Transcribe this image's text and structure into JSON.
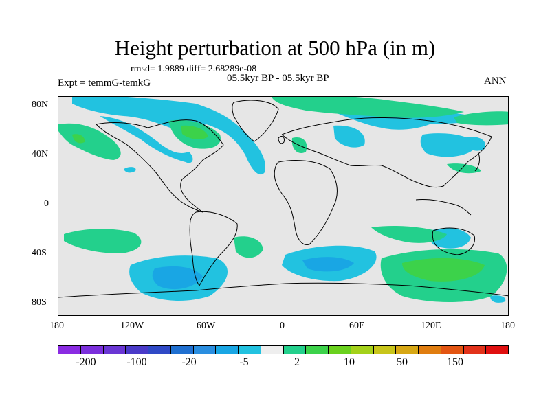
{
  "title": "Height perturbation at 500 hPa (in m)",
  "stats": "rmsd= 1.9889  diff= 2.68289e-08",
  "experiment": "Expt = temmG-temkG",
  "period": "05.5kyr BP - 05.5kyr BP",
  "season": "ANN",
  "lat_ticks": [
    "80N",
    "40N",
    "0",
    "40S",
    "80S"
  ],
  "lon_ticks": [
    "180",
    "120W",
    "60W",
    "0",
    "60E",
    "120E",
    "180"
  ],
  "colorbar": {
    "colors": [
      "#8a2be2",
      "#7b2fdc",
      "#6a36d4",
      "#4a3ac8",
      "#2f49c6",
      "#1f6fd0",
      "#2a8ee0",
      "#19a6e4",
      "#22c2e0",
      "#eeeeee",
      "#23d08c",
      "#3cd24a",
      "#6ad11e",
      "#a4d11a",
      "#c8c51a",
      "#d7a714",
      "#e07d10",
      "#e35512",
      "#e2321a",
      "#e01010"
    ],
    "labels": [
      "-200",
      "-100",
      "-20",
      "-5",
      "2",
      "10",
      "50",
      "150"
    ]
  },
  "field_colors": {
    "blue_light": "#22c2e0",
    "blue_mid": "#19a6e4",
    "green_light": "#23d08c",
    "green_mid": "#3cd24a",
    "background": "#e6e6e6",
    "coast": "#000000"
  }
}
